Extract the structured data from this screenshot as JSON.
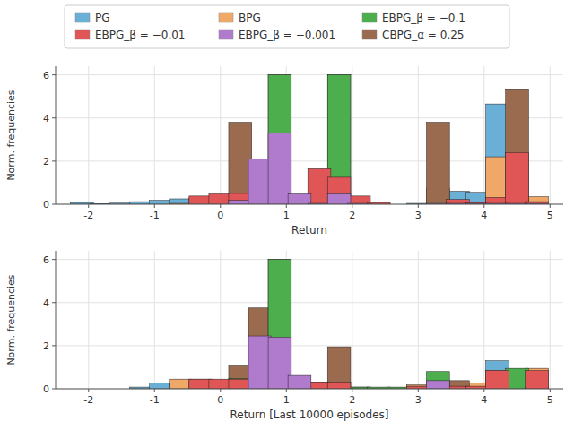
{
  "chart_data": [
    {
      "type": "bar",
      "xlabel": "Return",
      "ylabel": "Norm. frequencies",
      "x": [
        -2.1,
        -1.8,
        -1.5,
        -1.2,
        -0.9,
        -0.6,
        -0.3,
        0.0,
        0.3,
        0.6,
        0.9,
        1.2,
        1.5,
        1.8,
        2.1,
        2.4,
        2.7,
        3.0,
        3.3,
        3.6,
        3.9,
        4.2,
        4.5,
        4.8
      ],
      "series": [
        {
          "name": "PG",
          "color": "#6aafd6",
          "values": [
            0.08,
            0.03,
            0.05,
            0.12,
            0.18,
            0.25,
            0.3,
            0.32,
            0.35,
            0.3,
            0.0,
            0.12,
            0.08,
            0.08,
            0.04,
            0.04,
            0.0,
            0.04,
            0.04,
            0.6,
            0.55,
            4.65,
            0.38,
            0.0
          ]
        },
        {
          "name": "BPG",
          "color": "#f0a868",
          "values": [
            0.0,
            0.0,
            0.0,
            0.0,
            0.0,
            0.04,
            0.04,
            0.04,
            0.5,
            0.45,
            0.04,
            0.04,
            0.04,
            0.04,
            0.04,
            0.0,
            0.0,
            0.0,
            0.75,
            0.0,
            0.04,
            2.2,
            0.3,
            0.35
          ]
        },
        {
          "name": "EBPG_β = −0.1",
          "color": "#4cae4c",
          "values": [
            0.0,
            0.0,
            0.0,
            0.0,
            0.0,
            0.0,
            0.0,
            0.0,
            0.0,
            0.0,
            6.0,
            0.0,
            0.0,
            6.0,
            0.0,
            0.0,
            0.0,
            0.0,
            0.0,
            0.0,
            0.0,
            0.0,
            0.0,
            0.0
          ]
        },
        {
          "name": "EBPG_β = −0.01",
          "color": "#e05555",
          "values": [
            0.0,
            0.0,
            0.0,
            0.0,
            0.0,
            0.0,
            0.38,
            0.48,
            0.5,
            0.18,
            0.12,
            0.08,
            1.65,
            1.25,
            0.38,
            0.08,
            0.0,
            0.0,
            0.0,
            0.22,
            0.08,
            0.32,
            2.4,
            0.12
          ]
        },
        {
          "name": "EBPG_β = −0.001",
          "color": "#b07acd",
          "values": [
            0.0,
            0.0,
            0.0,
            0.0,
            0.0,
            0.0,
            0.0,
            0.0,
            0.18,
            2.1,
            3.3,
            0.48,
            0.04,
            0.48,
            0.04,
            0.0,
            0.0,
            0.0,
            0.04,
            0.04,
            0.04,
            0.04,
            0.04,
            0.04
          ]
        },
        {
          "name": "CBPG_α = 0.25",
          "color": "#9b6b50",
          "values": [
            0.0,
            0.0,
            0.0,
            0.0,
            0.0,
            0.0,
            0.0,
            0.0,
            3.8,
            0.0,
            6.0,
            0.0,
            0.0,
            6.0,
            0.0,
            0.0,
            0.0,
            0.0,
            3.8,
            0.0,
            0.0,
            0.0,
            5.35,
            0.0
          ]
        }
      ],
      "xlim": [
        -2.5,
        5.2
      ],
      "xticks": [
        -2,
        -1,
        0,
        1,
        2,
        3,
        4,
        5
      ],
      "ylim": [
        0,
        6.4
      ],
      "yticks": [
        0,
        2,
        4,
        6
      ],
      "grid": true,
      "legend": "top"
    },
    {
      "type": "bar",
      "xlabel": "Return [Last 10000 episodes]",
      "ylabel": "Norm. frequencies",
      "x": [
        -2.1,
        -1.8,
        -1.5,
        -1.2,
        -0.9,
        -0.6,
        -0.3,
        0.0,
        0.3,
        0.6,
        0.9,
        1.2,
        1.5,
        1.8,
        2.1,
        2.4,
        2.7,
        3.0,
        3.3,
        3.6,
        3.9,
        4.2,
        4.5,
        4.8
      ],
      "series": [
        {
          "name": "PG",
          "color": "#6aafd6",
          "values": [
            0.0,
            0.0,
            0.0,
            0.08,
            0.26,
            0.26,
            0.26,
            0.0,
            0.0,
            0.0,
            0.0,
            0.0,
            0.0,
            0.0,
            0.0,
            0.0,
            0.0,
            0.0,
            0.0,
            0.28,
            0.0,
            1.3,
            0.0,
            0.0
          ]
        },
        {
          "name": "BPG",
          "color": "#f0a868",
          "values": [
            0.0,
            0.0,
            0.0,
            0.0,
            0.0,
            0.45,
            0.45,
            0.0,
            0.32,
            0.55,
            0.6,
            0.0,
            0.32,
            0.32,
            0.0,
            0.0,
            0.0,
            0.18,
            0.18,
            0.0,
            0.28,
            0.85,
            0.0,
            0.95
          ]
        },
        {
          "name": "EBPG_β = −0.1",
          "color": "#4cae4c",
          "values": [
            0.0,
            0.0,
            0.0,
            0.0,
            0.0,
            0.0,
            0.0,
            0.0,
            0.48,
            1.1,
            6.0,
            0.08,
            0.08,
            0.08,
            0.08,
            0.08,
            0.08,
            0.12,
            0.8,
            0.08,
            0.08,
            0.08,
            0.95,
            0.08
          ]
        },
        {
          "name": "EBPG_β = −0.01",
          "color": "#e05555",
          "values": [
            0.0,
            0.0,
            0.0,
            0.0,
            0.0,
            0.0,
            0.45,
            0.45,
            0.45,
            0.0,
            0.32,
            0.0,
            0.32,
            0.32,
            0.0,
            0.0,
            0.0,
            0.12,
            0.0,
            0.12,
            0.12,
            0.85,
            0.0,
            0.85
          ]
        },
        {
          "name": "EBPG_β = −0.001",
          "color": "#b07acd",
          "values": [
            0.0,
            0.0,
            0.0,
            0.0,
            0.0,
            0.0,
            0.0,
            0.0,
            0.0,
            2.45,
            2.4,
            0.62,
            0.0,
            0.0,
            0.0,
            0.0,
            0.0,
            0.0,
            0.38,
            0.0,
            0.0,
            0.0,
            0.0,
            0.0
          ]
        },
        {
          "name": "CBPG_α = 0.25",
          "color": "#9b6b50",
          "values": [
            0.0,
            0.0,
            0.0,
            0.0,
            0.0,
            0.0,
            0.0,
            0.0,
            1.1,
            3.75,
            6.0,
            0.08,
            0.08,
            1.95,
            0.08,
            0.0,
            0.0,
            0.0,
            0.0,
            0.38,
            0.0,
            0.0,
            0.0,
            0.0
          ]
        }
      ],
      "xlim": [
        -2.5,
        5.2
      ],
      "xticks": [
        -2,
        -1,
        0,
        1,
        2,
        3,
        4,
        5
      ],
      "ylim": [
        0,
        6.4
      ],
      "yticks": [
        0,
        2,
        4,
        6
      ],
      "grid": true
    }
  ]
}
